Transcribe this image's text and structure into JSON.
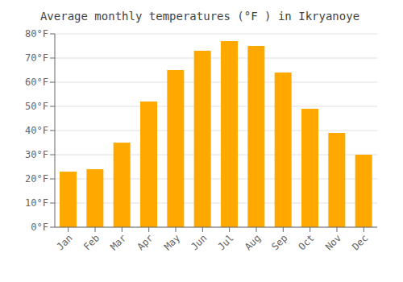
{
  "chart_data": {
    "type": "bar",
    "title": "Average monthly temperatures (°F ) in Ikryanoye",
    "categories": [
      "Jan",
      "Feb",
      "Mar",
      "Apr",
      "May",
      "Jun",
      "Jul",
      "Aug",
      "Sep",
      "Oct",
      "Nov",
      "Dec"
    ],
    "values": [
      23,
      24,
      35,
      52,
      65,
      73,
      77,
      75,
      64,
      49,
      39,
      30
    ],
    "color": "#FFA800",
    "ylim": [
      0,
      80
    ],
    "yticks": [
      {
        "value": 0,
        "label": "0°F"
      },
      {
        "value": 10,
        "label": "10°F"
      },
      {
        "value": 20,
        "label": "20°F"
      },
      {
        "value": 30,
        "label": "30°F"
      },
      {
        "value": 40,
        "label": "40°F"
      },
      {
        "value": 50,
        "label": "50°F"
      },
      {
        "value": 60,
        "label": "60°F"
      },
      {
        "value": 70,
        "label": "70°F"
      },
      {
        "value": 80,
        "label": "80°F"
      }
    ],
    "grid": true
  }
}
